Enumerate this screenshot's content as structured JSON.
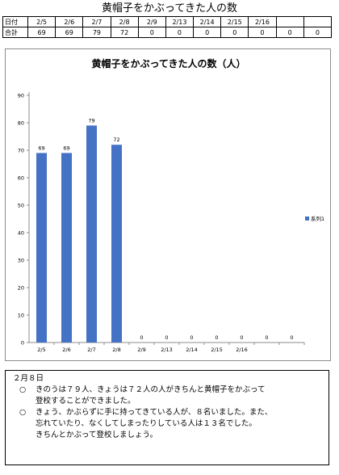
{
  "page_title": "黄帽子をかぶってきた人の数",
  "tally_table": {
    "header_label": "日付",
    "total_label": "合計",
    "dates": [
      "2/5",
      "2/6",
      "2/7",
      "2/8",
      "2/9",
      "2/13",
      "2/14",
      "2/15",
      "2/16",
      "",
      ""
    ],
    "totals": [
      "69",
      "69",
      "79",
      "72",
      "0",
      "0",
      "0",
      "0",
      "0",
      "0",
      "0"
    ]
  },
  "chart_data": {
    "type": "bar",
    "title": "黄帽子をかぶってきた人の数（人）",
    "categories": [
      "2/5",
      "2/6",
      "2/7",
      "2/8",
      "2/9",
      "2/13",
      "2/14",
      "2/15",
      "2/16",
      "",
      ""
    ],
    "series": [
      {
        "name": "系列1",
        "values": [
          69,
          69,
          79,
          72,
          0,
          0,
          0,
          0,
          0,
          0,
          0
        ],
        "color": "#4472c4"
      }
    ],
    "ylim": [
      0,
      90
    ],
    "yticks": [
      0,
      10,
      20,
      30,
      40,
      50,
      60,
      70,
      80,
      90
    ],
    "xlabel": "",
    "ylabel": "",
    "grid": false,
    "data_labels": true,
    "legend_position": "right"
  },
  "notes": {
    "heading": "２月８日",
    "items": [
      {
        "bullet": "○",
        "lines": [
          "きのうは７９人、きょうは７２人の人がきちんと黄帽子をかぶって",
          "登校することができました。"
        ]
      },
      {
        "bullet": "○",
        "lines": [
          "きょう、かぶらずに手に持ってきている人が、８名いました。また、",
          "忘れていたり、なくしてしまったりしている人は１３名でした。",
          "きちんとかぶって登校しましょう。"
        ]
      }
    ]
  }
}
